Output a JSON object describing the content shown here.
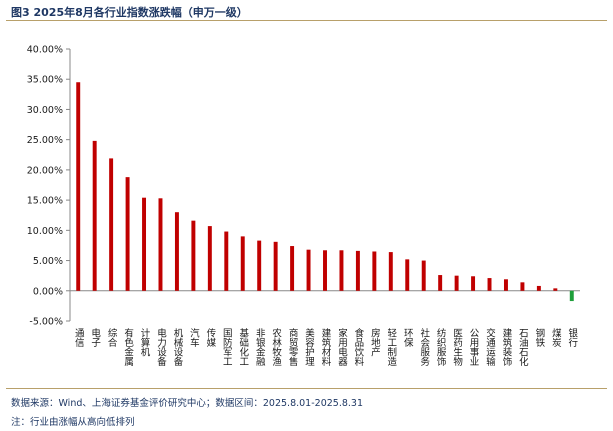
{
  "header": {
    "title": "图3 2025年8月各行业指数涨跌幅（申万一级）"
  },
  "footer": {
    "source": "数据来源：Wind、上海证券基金评价研究中心；数据区间：2025.8.01-2025.8.31",
    "note": "注：行业由涨幅从高向低排列"
  },
  "colors": {
    "positive": "#c00000",
    "negative": "#1e9e3a",
    "axis": "#888888",
    "title": "#1f3864"
  },
  "chart_data": {
    "type": "bar",
    "title": "图3 2025年8月各行业指数涨跌幅（申万一级）",
    "xlabel": "",
    "ylabel": "",
    "ylim": [
      -5,
      40
    ],
    "ytick_step": 5,
    "y_tick_labels": [
      "-5.00%",
      "0.00%",
      "5.00%",
      "10.00%",
      "15.00%",
      "20.00%",
      "25.00%",
      "30.00%",
      "35.00%",
      "40.00%"
    ],
    "grid": false,
    "legend": "none",
    "categories": [
      "通信",
      "电子",
      "综合",
      "有色金属",
      "计算机",
      "电力设备",
      "机械设备",
      "汽车",
      "传媒",
      "国防军工",
      "基础化工",
      "非银金融",
      "农林牧渔",
      "商贸零售",
      "美容护理",
      "建筑材料",
      "家用电器",
      "食品饮料",
      "房地产",
      "轻工制造",
      "环保",
      "社会服务",
      "纺织服饰",
      "医药生物",
      "公用事业",
      "交通运输",
      "建筑装饰",
      "石油石化",
      "钢铁",
      "煤炭",
      "银行"
    ],
    "values": [
      34.5,
      24.8,
      21.9,
      18.8,
      15.4,
      15.3,
      13.0,
      11.6,
      10.7,
      9.8,
      9.0,
      8.3,
      8.1,
      7.4,
      6.8,
      6.7,
      6.7,
      6.6,
      6.5,
      6.4,
      5.2,
      5.0,
      2.6,
      2.5,
      2.4,
      2.1,
      1.9,
      1.4,
      0.8,
      0.4,
      -1.7
    ]
  }
}
